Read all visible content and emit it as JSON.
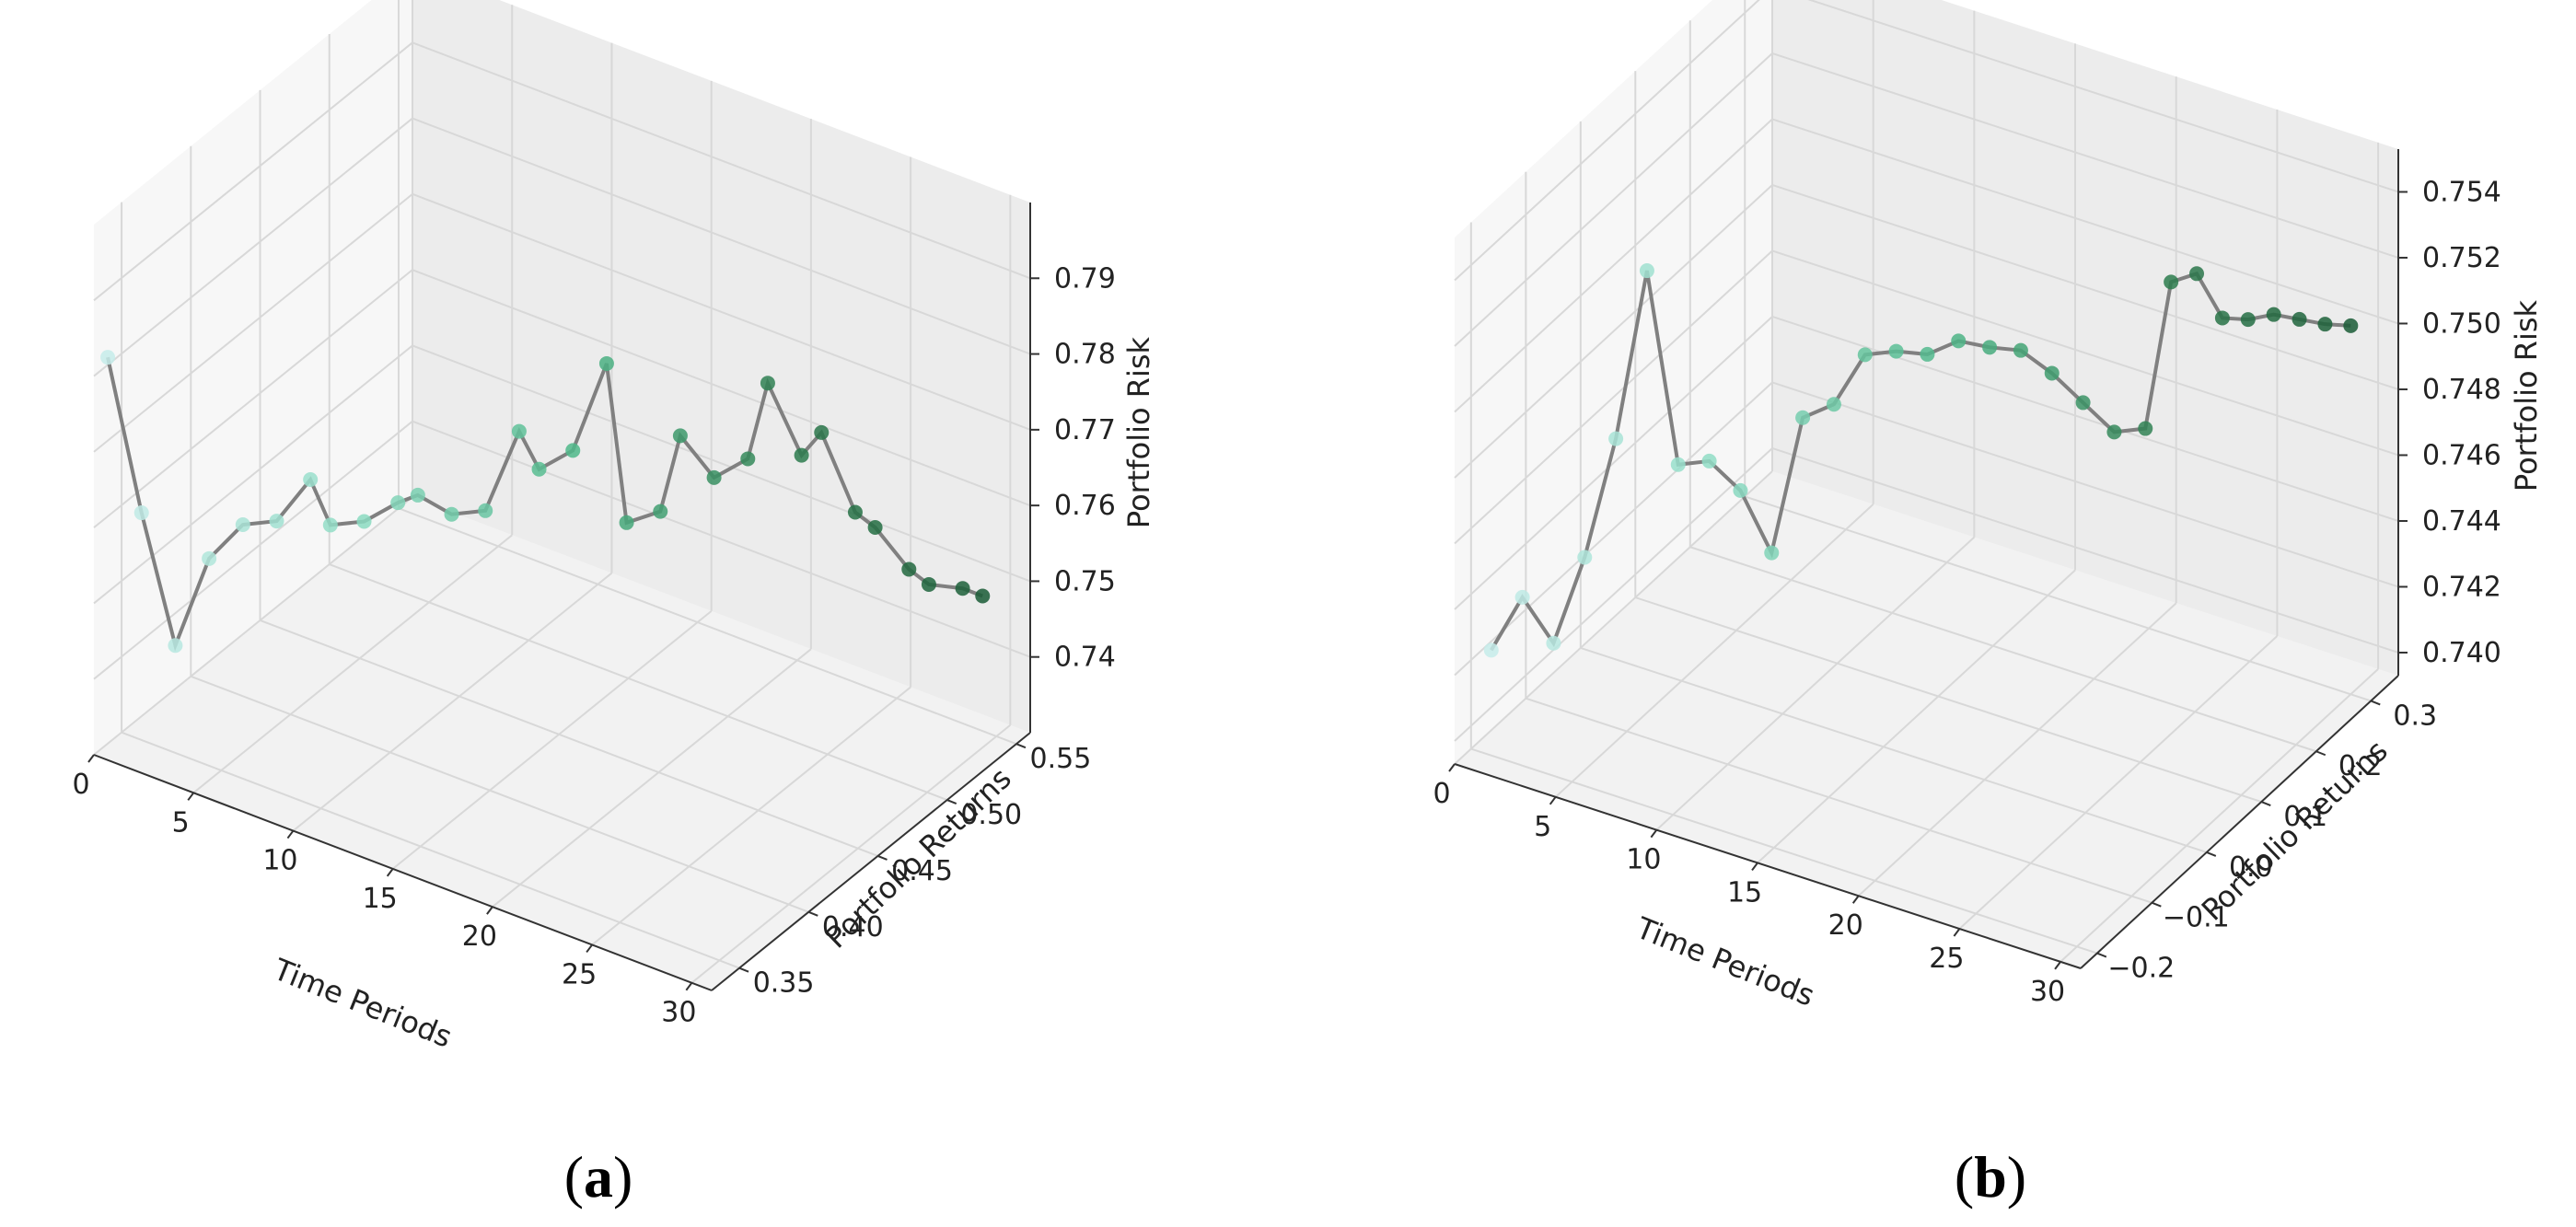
{
  "chart_data": [
    {
      "type": "scatter",
      "subtype": "3d-line-scatter",
      "caption_letter": "a",
      "xlabel": "Time Periods",
      "ylabel": "Portfolio Returns",
      "zlabel": "Portfolio Risk",
      "xlim": [
        0,
        31
      ],
      "ylim": [
        0.33,
        0.56
      ],
      "zlim": [
        0.73,
        0.8
      ],
      "xticks": [
        "0",
        "5",
        "10",
        "15",
        "20",
        "25",
        "30"
      ],
      "yticks": [
        "0.35",
        "0.40",
        "0.45",
        "0.50",
        "0.55"
      ],
      "zticks": [
        "0.74",
        "0.75",
        "0.76",
        "0.77",
        "0.78",
        "0.79"
      ],
      "grid": true,
      "line_color": "#808080",
      "colormap": [
        "#c6ecea",
        "#8fdcc5",
        "#4fb88a",
        "#2e7d4f",
        "#1a5c36"
      ],
      "series": [
        {
          "x": [
            0,
            1,
            2,
            3,
            4,
            5,
            6,
            7,
            8,
            9,
            10,
            11,
            12,
            13,
            14,
            15,
            16,
            17,
            18,
            19,
            20,
            21,
            22,
            23,
            24,
            25,
            26,
            27,
            28,
            29,
            30
          ],
          "y": [
            0.34,
            0.35,
            0.36,
            0.37,
            0.38,
            0.39,
            0.4,
            0.4,
            0.41,
            0.42,
            0.42,
            0.43,
            0.44,
            0.45,
            0.45,
            0.46,
            0.47,
            0.47,
            0.48,
            0.48,
            0.49,
            0.5,
            0.5,
            0.51,
            0.51,
            0.52,
            0.52,
            0.53,
            0.53,
            0.54,
            0.54
          ],
          "z": [
            0.781,
            0.76,
            0.742,
            0.753,
            0.757,
            0.757,
            0.762,
            0.757,
            0.757,
            0.759,
            0.761,
            0.758,
            0.758,
            0.768,
            0.764,
            0.766,
            0.777,
            0.757,
            0.758,
            0.769,
            0.763,
            0.765,
            0.776,
            0.766,
            0.77,
            0.759,
            0.758,
            0.752,
            0.751,
            0.75,
            0.75
          ]
        }
      ]
    },
    {
      "type": "scatter",
      "subtype": "3d-line-scatter",
      "caption_letter": "b",
      "xlabel": "Time Periods",
      "ylabel": "Portfolio Returns",
      "zlabel": "Portfolio Risk",
      "xlim": [
        0,
        31
      ],
      "ylim": [
        -0.23,
        0.35
      ],
      "zlim": [
        0.7393,
        0.7553
      ],
      "xticks": [
        "0",
        "5",
        "10",
        "15",
        "20",
        "25",
        "30"
      ],
      "yticks": [
        "−0.2",
        "−0.1",
        "0.0",
        "0.1",
        "0.2",
        "0.3"
      ],
      "zticks": [
        "0.740",
        "0.742",
        "0.744",
        "0.746",
        "0.748",
        "0.750",
        "0.752",
        "0.754"
      ],
      "grid": true,
      "line_color": "#808080",
      "colormap": [
        "#c6ecea",
        "#8fdcc5",
        "#4fb88a",
        "#2e7d4f",
        "#1a5c36"
      ],
      "series": [
        {
          "x": [
            1,
            2,
            3,
            4,
            5,
            6,
            7,
            8,
            9,
            10,
            11,
            12,
            13,
            14,
            15,
            16,
            17,
            18,
            19,
            20,
            21,
            22,
            23,
            24,
            25,
            26,
            27,
            28,
            29,
            30
          ],
          "y": [
            -0.2,
            -0.18,
            -0.16,
            -0.14,
            -0.12,
            -0.1,
            -0.08,
            -0.06,
            -0.04,
            -0.02,
            0.0,
            0.02,
            0.04,
            0.06,
            0.08,
            0.1,
            0.12,
            0.14,
            0.16,
            0.18,
            0.2,
            0.22,
            0.23,
            0.24,
            0.25,
            0.26,
            0.27,
            0.28,
            0.29,
            0.3
          ],
          "z": [
            0.7425,
            0.744,
            0.7425,
            0.745,
            0.7485,
            0.7535,
            0.7475,
            0.7475,
            0.7465,
            0.7445,
            0.7485,
            0.7488,
            0.7502,
            0.7502,
            0.75,
            0.7503,
            0.75,
            0.7498,
            0.749,
            0.748,
            0.747,
            0.747,
            0.7515,
            0.7518,
            0.7505,
            0.7505,
            0.7507,
            0.7506,
            0.7505,
            0.7505
          ]
        }
      ]
    }
  ]
}
